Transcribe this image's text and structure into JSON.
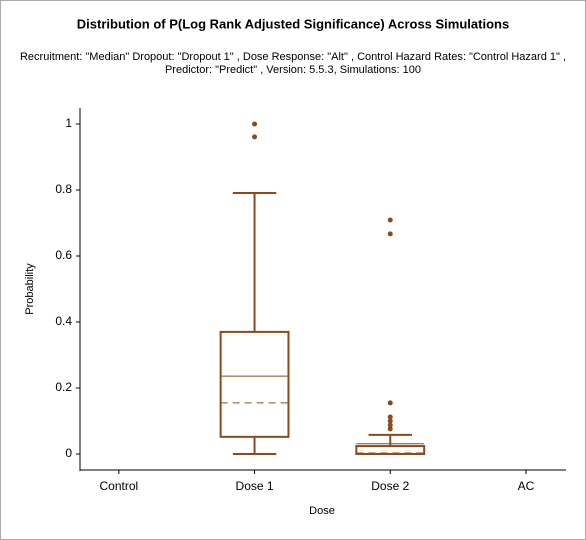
{
  "chart_data": {
    "type": "box",
    "title": "Distribution of P(Log Rank Adjusted Significance) Across Simulations",
    "subtitle": [
      "Recruitment: \"Median\" Dropout: \"Dropout 1\" , Dose Response: \"Alt\" , Control Hazard Rates: \"Control Hazard 1\" ,",
      "Predictor: \"Predict\" , Version: 5.5.3, Simulations: 100"
    ],
    "x_label": "Dose",
    "y_label": "Probability",
    "categories": [
      "Control",
      "Dose 1",
      "Dose 2",
      "AC"
    ],
    "min": [
      null,
      0,
      0,
      null
    ],
    "q1": [
      null,
      0.052,
      0,
      null
    ],
    "median": [
      null,
      0.155,
      0.003,
      null
    ],
    "mean": [
      null,
      0.236,
      0.031,
      null
    ],
    "q3": [
      null,
      0.37,
      0.024,
      null
    ],
    "max": [
      null,
      0.791,
      0.058,
      null
    ],
    "outliers": [
      [],
      [
        1.0,
        0.961
      ],
      [
        0.709,
        0.667,
        0.155,
        0.112,
        0.1,
        0.088,
        0.076
      ],
      []
    ],
    "color": "#8b4a1c",
    "ylim": [
      0,
      1
    ],
    "yticks": [
      0,
      0.2,
      0.4,
      0.6,
      0.8,
      1
    ]
  }
}
